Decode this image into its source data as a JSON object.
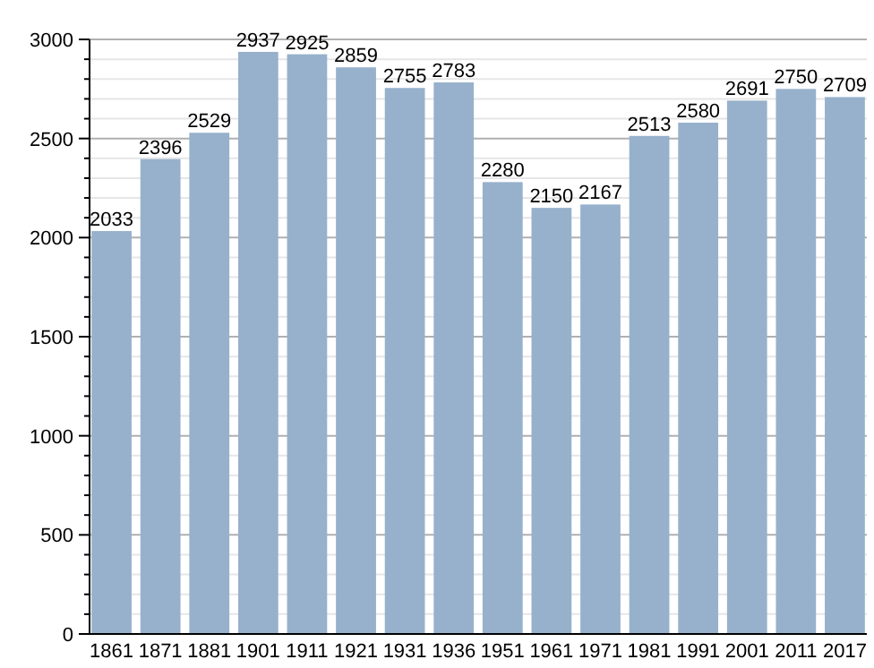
{
  "chart_data": {
    "type": "bar",
    "categories": [
      "1861",
      "1871",
      "1881",
      "1901",
      "1911",
      "1921",
      "1931",
      "1936",
      "1951",
      "1961",
      "1971",
      "1981",
      "1991",
      "2001",
      "2011",
      "2017"
    ],
    "values": [
      2033,
      2396,
      2529,
      2937,
      2925,
      2859,
      2755,
      2783,
      2280,
      2150,
      2167,
      2513,
      2580,
      2691,
      2750,
      2709
    ],
    "color": "#97b1cc",
    "ylim": [
      0,
      3000
    ],
    "yticks": [
      0,
      {
        "value": 100,
        "label": null
      },
      {
        "value": 200,
        "label": null
      },
      {
        "value": 300,
        "label": null
      },
      {
        "value": 400,
        "label": null
      },
      500,
      {
        "value": 600,
        "label": null
      },
      {
        "value": 700,
        "label": null
      },
      {
        "value": 800,
        "label": null
      },
      {
        "value": 900,
        "label": null
      },
      1000,
      {
        "value": 1100,
        "label": null
      },
      {
        "value": 1200,
        "label": null
      },
      {
        "value": 1300,
        "label": null
      },
      {
        "value": 1400,
        "label": null
      },
      1500,
      {
        "value": 1600,
        "label": null
      },
      {
        "value": 1700,
        "label": null
      },
      {
        "value": 1800,
        "label": null
      },
      {
        "value": 1900,
        "label": null
      },
      2000,
      {
        "value": 2100,
        "label": null
      },
      {
        "value": 2200,
        "label": null
      },
      {
        "value": 2300,
        "label": null
      },
      {
        "value": 2400,
        "label": null
      },
      2500,
      {
        "value": 2600,
        "label": null
      },
      {
        "value": 2700,
        "label": null
      },
      {
        "value": 2800,
        "label": null
      },
      {
        "value": 2900,
        "label": null
      },
      3000
    ],
    "grid": "y",
    "data_labels": true
  }
}
